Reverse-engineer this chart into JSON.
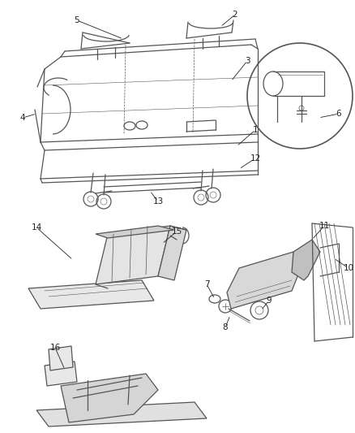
{
  "background_color": "#ffffff",
  "line_color": "#555555",
  "label_color": "#222222",
  "label_fontsize": 7.5,
  "fig_width": 4.38,
  "fig_height": 5.33,
  "dpi": 100
}
